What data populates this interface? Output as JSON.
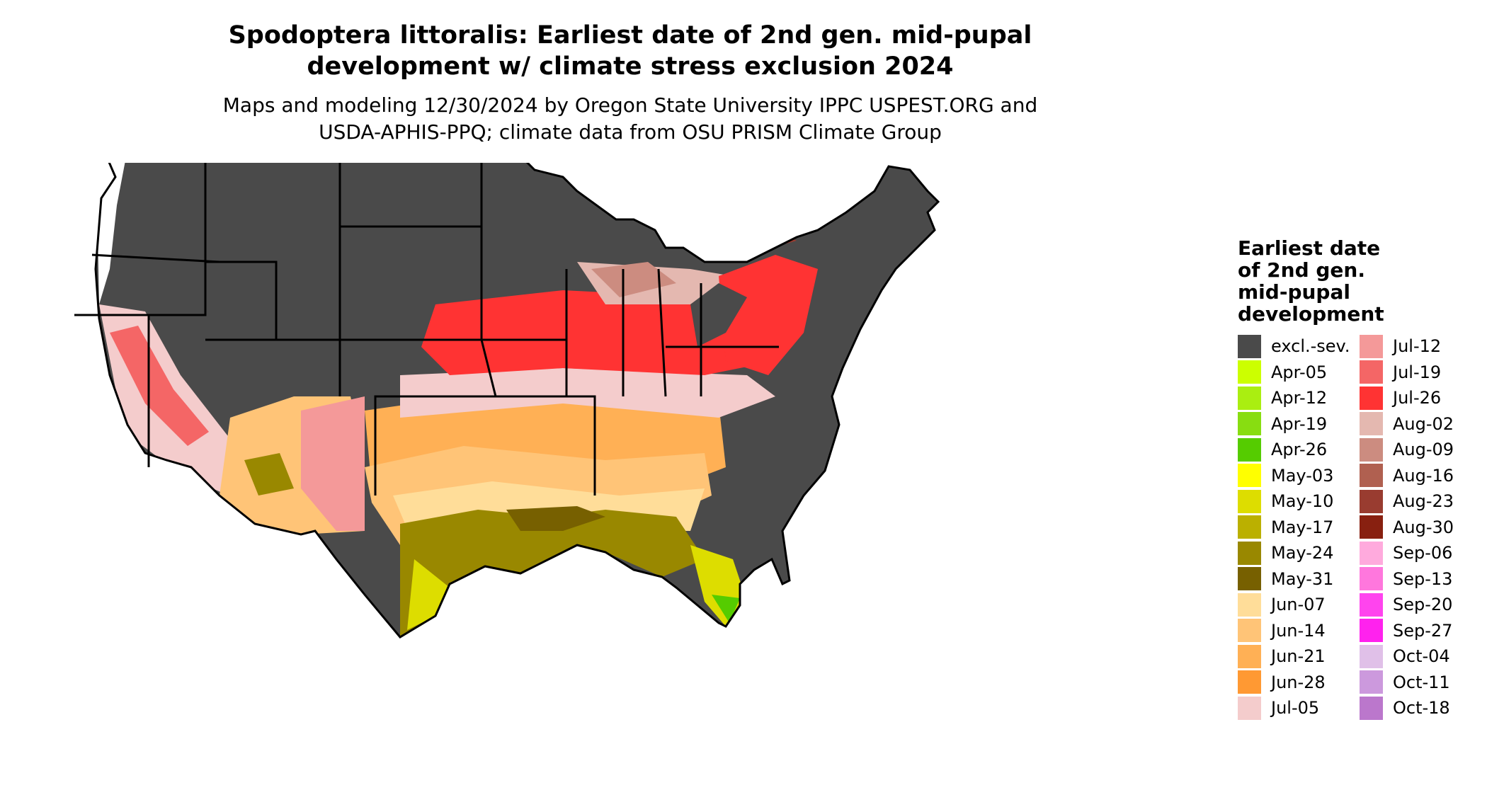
{
  "title_line1": "Spodoptera littoralis: Earliest date of 2nd gen. mid-pupal",
  "title_line2": "development w/ climate stress exclusion 2024",
  "subtitle_line1": "Maps and modeling 12/30/2024 by Oregon State University IPPC USPEST.ORG and",
  "subtitle_line2": "USDA-APHIS-PPQ; climate data from OSU PRISM Climate Group",
  "legend": {
    "title_lines": [
      "Earliest date",
      "of 2nd gen.",
      "mid-pupal",
      "development"
    ],
    "items": [
      {
        "label": "excl.-sev.",
        "color": "#4a4a4a"
      },
      {
        "label": "Apr-05",
        "color": "#ccff00"
      },
      {
        "label": "Apr-12",
        "color": "#aaee11"
      },
      {
        "label": "Apr-19",
        "color": "#88dd11"
      },
      {
        "label": "Apr-26",
        "color": "#55cc00"
      },
      {
        "label": "May-03",
        "color": "#ffff00"
      },
      {
        "label": "May-10",
        "color": "#dddd00"
      },
      {
        "label": "May-17",
        "color": "#bbb000"
      },
      {
        "label": "May-24",
        "color": "#998800"
      },
      {
        "label": "May-31",
        "color": "#776000"
      },
      {
        "label": "Jun-07",
        "color": "#ffdd99"
      },
      {
        "label": "Jun-14",
        "color": "#ffc477"
      },
      {
        "label": "Jun-21",
        "color": "#ffb055"
      },
      {
        "label": "Jun-28",
        "color": "#ff9933"
      },
      {
        "label": "Jul-05",
        "color": "#f4cccc"
      },
      {
        "label": "Jul-12",
        "color": "#f49999"
      },
      {
        "label": "Jul-19",
        "color": "#f46666"
      },
      {
        "label": "Jul-26",
        "color": "#ff3333"
      },
      {
        "label": "Aug-02",
        "color": "#e4b8b0"
      },
      {
        "label": "Aug-09",
        "color": "#cc8c80"
      },
      {
        "label": "Aug-16",
        "color": "#b06050"
      },
      {
        "label": "Aug-23",
        "color": "#993c30"
      },
      {
        "label": "Aug-30",
        "color": "#882010"
      },
      {
        "label": "Sep-06",
        "color": "#ffaadd"
      },
      {
        "label": "Sep-13",
        "color": "#ff77dd"
      },
      {
        "label": "Sep-20",
        "color": "#ff44ee"
      },
      {
        "label": "Sep-27",
        "color": "#ff22ee"
      },
      {
        "label": "Oct-04",
        "color": "#e0c0e8"
      },
      {
        "label": "Oct-11",
        "color": "#cc99dd"
      },
      {
        "label": "Oct-18",
        "color": "#bb77cc"
      }
    ]
  }
}
